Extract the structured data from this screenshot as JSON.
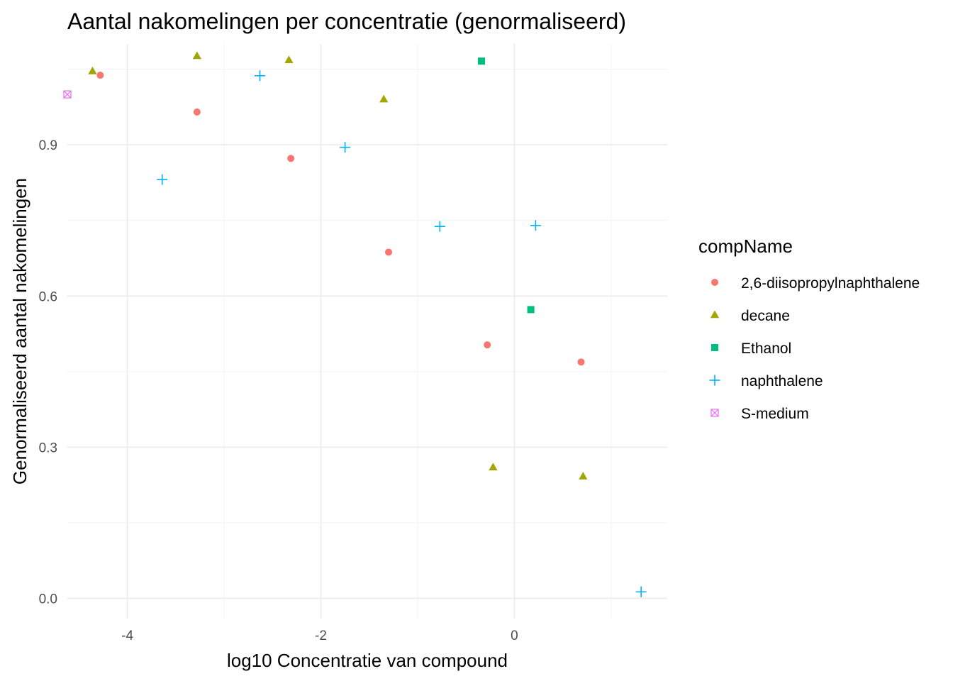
{
  "chart_data": {
    "type": "scatter",
    "title": "Aantal nakomelingen per concentratie (genormaliseerd)",
    "xlabel": "log10 Concentratie van compound",
    "ylabel": "Genormaliseerd aantal nakomelingen",
    "xlim": [
      -4.62,
      1.58
    ],
    "ylim": [
      -0.04,
      1.1
    ],
    "x_ticks": [
      -4,
      -2,
      0
    ],
    "x_tick_labels": [
      "-4",
      "-2",
      "0"
    ],
    "y_ticks": [
      0.0,
      0.3,
      0.6,
      0.9
    ],
    "y_tick_labels": [
      "0.0",
      "0.3",
      "0.6",
      "0.9"
    ],
    "grid": true,
    "legend_title": "compName",
    "legend_position": "right",
    "series": [
      {
        "name": "2,6-diisopropylnaphthalene",
        "color": "#F8766D",
        "shape": "circle",
        "points": [
          {
            "x": -4.28,
            "y": 1.038
          },
          {
            "x": -3.28,
            "y": 0.965
          },
          {
            "x": -2.31,
            "y": 0.873
          },
          {
            "x": -1.3,
            "y": 0.687
          },
          {
            "x": -0.28,
            "y": 0.503
          },
          {
            "x": 0.69,
            "y": 0.469
          }
        ]
      },
      {
        "name": "decane",
        "color": "#A3A500",
        "shape": "triangle",
        "points": [
          {
            "x": -4.36,
            "y": 1.046
          },
          {
            "x": -3.28,
            "y": 1.076
          },
          {
            "x": -2.33,
            "y": 1.068
          },
          {
            "x": -1.35,
            "y": 0.99
          },
          {
            "x": -0.22,
            "y": 0.26
          },
          {
            "x": 0.71,
            "y": 0.242
          }
        ]
      },
      {
        "name": "Ethanol",
        "color": "#00BF7D",
        "shape": "square",
        "points": [
          {
            "x": -0.34,
            "y": 1.066
          },
          {
            "x": 0.17,
            "y": 0.573
          }
        ]
      },
      {
        "name": "naphthalene",
        "color": "#00B0F6",
        "shape": "plus",
        "points": [
          {
            "x": -3.64,
            "y": 0.831
          },
          {
            "x": -2.63,
            "y": 1.037
          },
          {
            "x": -1.75,
            "y": 0.895
          },
          {
            "x": -0.77,
            "y": 0.738
          },
          {
            "x": 0.22,
            "y": 0.74
          },
          {
            "x": 1.31,
            "y": 0.013
          }
        ]
      },
      {
        "name": "S-medium",
        "color": "#E76BF3",
        "shape": "boxcross",
        "points": [
          {
            "x": -4.62,
            "y": 1.0
          }
        ]
      }
    ]
  }
}
